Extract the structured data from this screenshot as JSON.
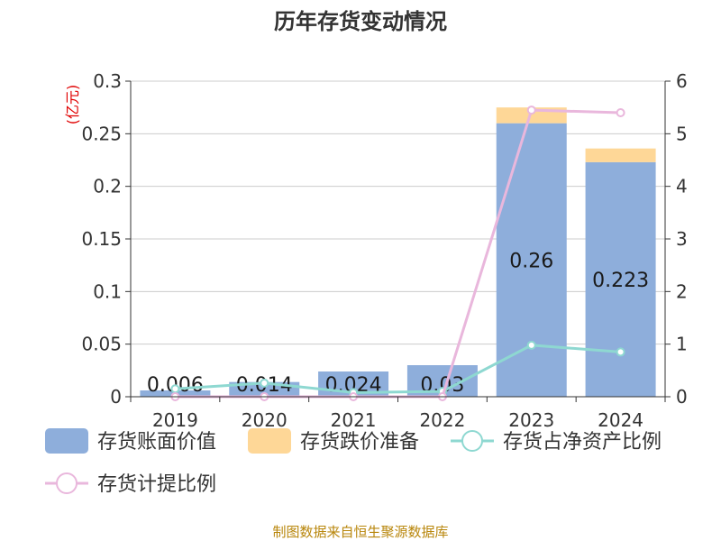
{
  "chart_data": {
    "type": "bar",
    "title": "历年存货变动情况",
    "left_axis_unit": "(亿元)",
    "categories": [
      "2019",
      "2020",
      "2021",
      "2022",
      "2023",
      "2024"
    ],
    "left_axis": {
      "min": 0,
      "max": 0.3,
      "ticks": [
        "0",
        "0.05",
        "0.1",
        "0.15",
        "0.2",
        "0.25",
        "0.3"
      ]
    },
    "right_axis": {
      "min": 0,
      "max": 6,
      "ticks": [
        "0",
        "1",
        "2",
        "3",
        "4",
        "5",
        "6"
      ]
    },
    "bar_series": [
      {
        "name": "存货账面价值",
        "color": "#8eaedb",
        "values": [
          0.006,
          0.014,
          0.024,
          0.03,
          0.26,
          0.223
        ],
        "labels": [
          "0.006",
          "0.014",
          "0.024",
          "0.03",
          "0.26",
          "0.223"
        ]
      },
      {
        "name": "存货跌价准备",
        "color": "#fed797",
        "values": [
          0,
          0,
          0,
          0,
          0.015,
          0.013
        ]
      }
    ],
    "line_series": [
      {
        "name": "存货占净资产比例",
        "color": "#8ed8d1",
        "axis": "right",
        "values": [
          0.15,
          0.26,
          0.08,
          0.1,
          0.98,
          0.85
        ]
      },
      {
        "name": "存货计提比例",
        "color": "#e9b7dc",
        "axis": "right",
        "values": [
          0,
          0,
          0,
          0,
          5.45,
          5.4
        ]
      }
    ],
    "legend": "bottom",
    "grid": true
  },
  "source_text": "制图数据来自恒生聚源数据库"
}
